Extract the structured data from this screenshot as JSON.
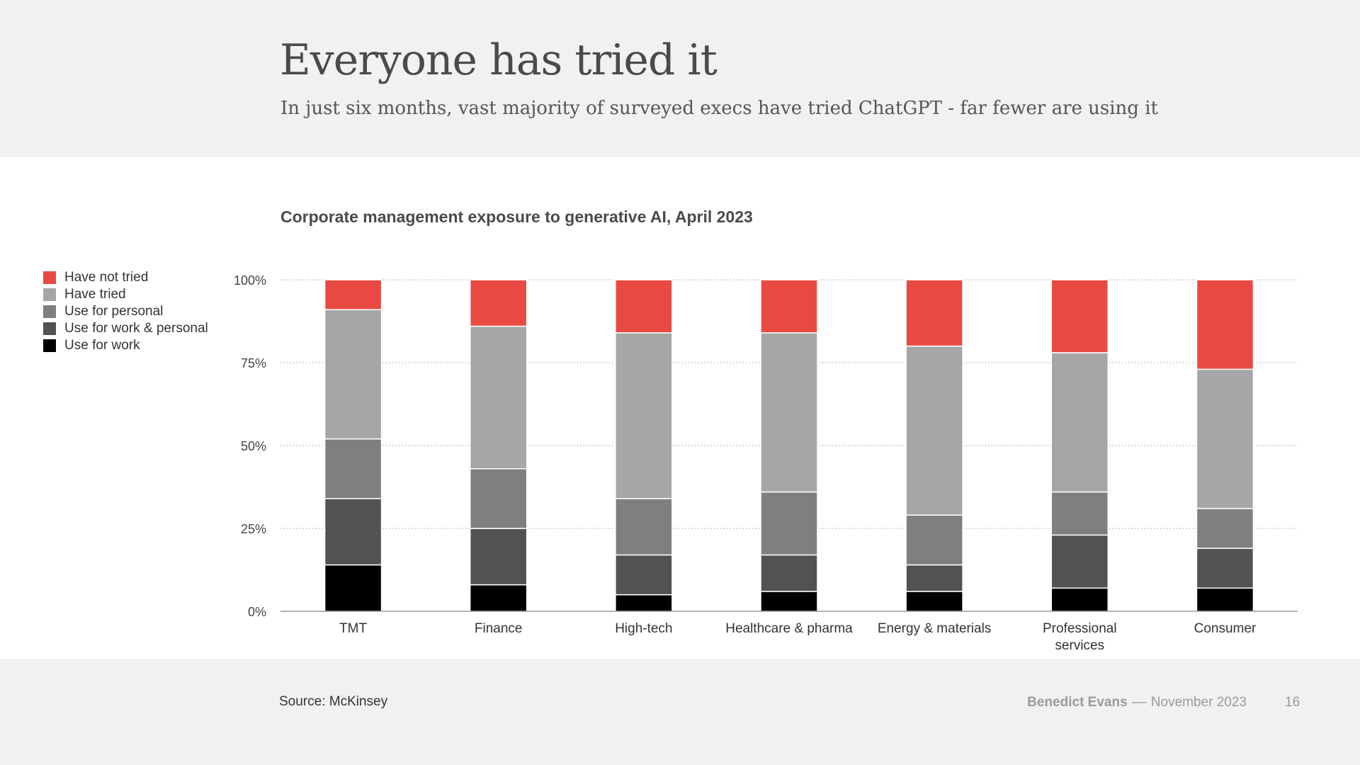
{
  "slide": {
    "title": "Everyone has tried it",
    "subtitle": "In just six months, vast majority of surveyed execs have tried ChatGPT - far fewer are using it"
  },
  "legend": {
    "items": [
      {
        "label": "Have not tried",
        "color": "#e84a43"
      },
      {
        "label": "Have tried",
        "color": "#a6a6a6"
      },
      {
        "label": "Use for personal",
        "color": "#7f7f7f"
      },
      {
        "label": "Use for work & personal",
        "color": "#525252"
      },
      {
        "label": "Use for work",
        "color": "#000000"
      }
    ]
  },
  "footer": {
    "source": "Source: McKinsey",
    "author": "Benedict Evans",
    "separator": "––",
    "date": "November 2023",
    "page": "16"
  },
  "chart_data": {
    "type": "bar",
    "stacked": true,
    "title": "Corporate management exposure to generative AI, April 2023",
    "xlabel": "",
    "ylabel": "",
    "ylim": [
      0,
      100
    ],
    "yticks": [
      "0%",
      "25%",
      "50%",
      "75%",
      "100%"
    ],
    "grid": true,
    "legend_position": "left",
    "categories": [
      [
        "TMT"
      ],
      [
        "Finance"
      ],
      [
        "High-tech"
      ],
      [
        "Healthcare & pharma"
      ],
      [
        "Energy & materials"
      ],
      [
        "Professional",
        "services"
      ],
      [
        "Consumer"
      ]
    ],
    "series": [
      {
        "name": "Use for work",
        "color": "#000000",
        "values": [
          14,
          8,
          5,
          6,
          6,
          7,
          7
        ]
      },
      {
        "name": "Use for work & personal",
        "color": "#525252",
        "values": [
          20,
          17,
          12,
          11,
          8,
          16,
          12
        ]
      },
      {
        "name": "Use for personal",
        "color": "#7f7f7f",
        "values": [
          18,
          18,
          17,
          19,
          15,
          13,
          12
        ]
      },
      {
        "name": "Have tried",
        "color": "#a6a6a6",
        "values": [
          39,
          43,
          50,
          48,
          51,
          42,
          42
        ]
      },
      {
        "name": "Have not tried",
        "color": "#e84a43",
        "values": [
          9,
          14,
          16,
          16,
          20,
          22,
          27
        ]
      }
    ]
  }
}
